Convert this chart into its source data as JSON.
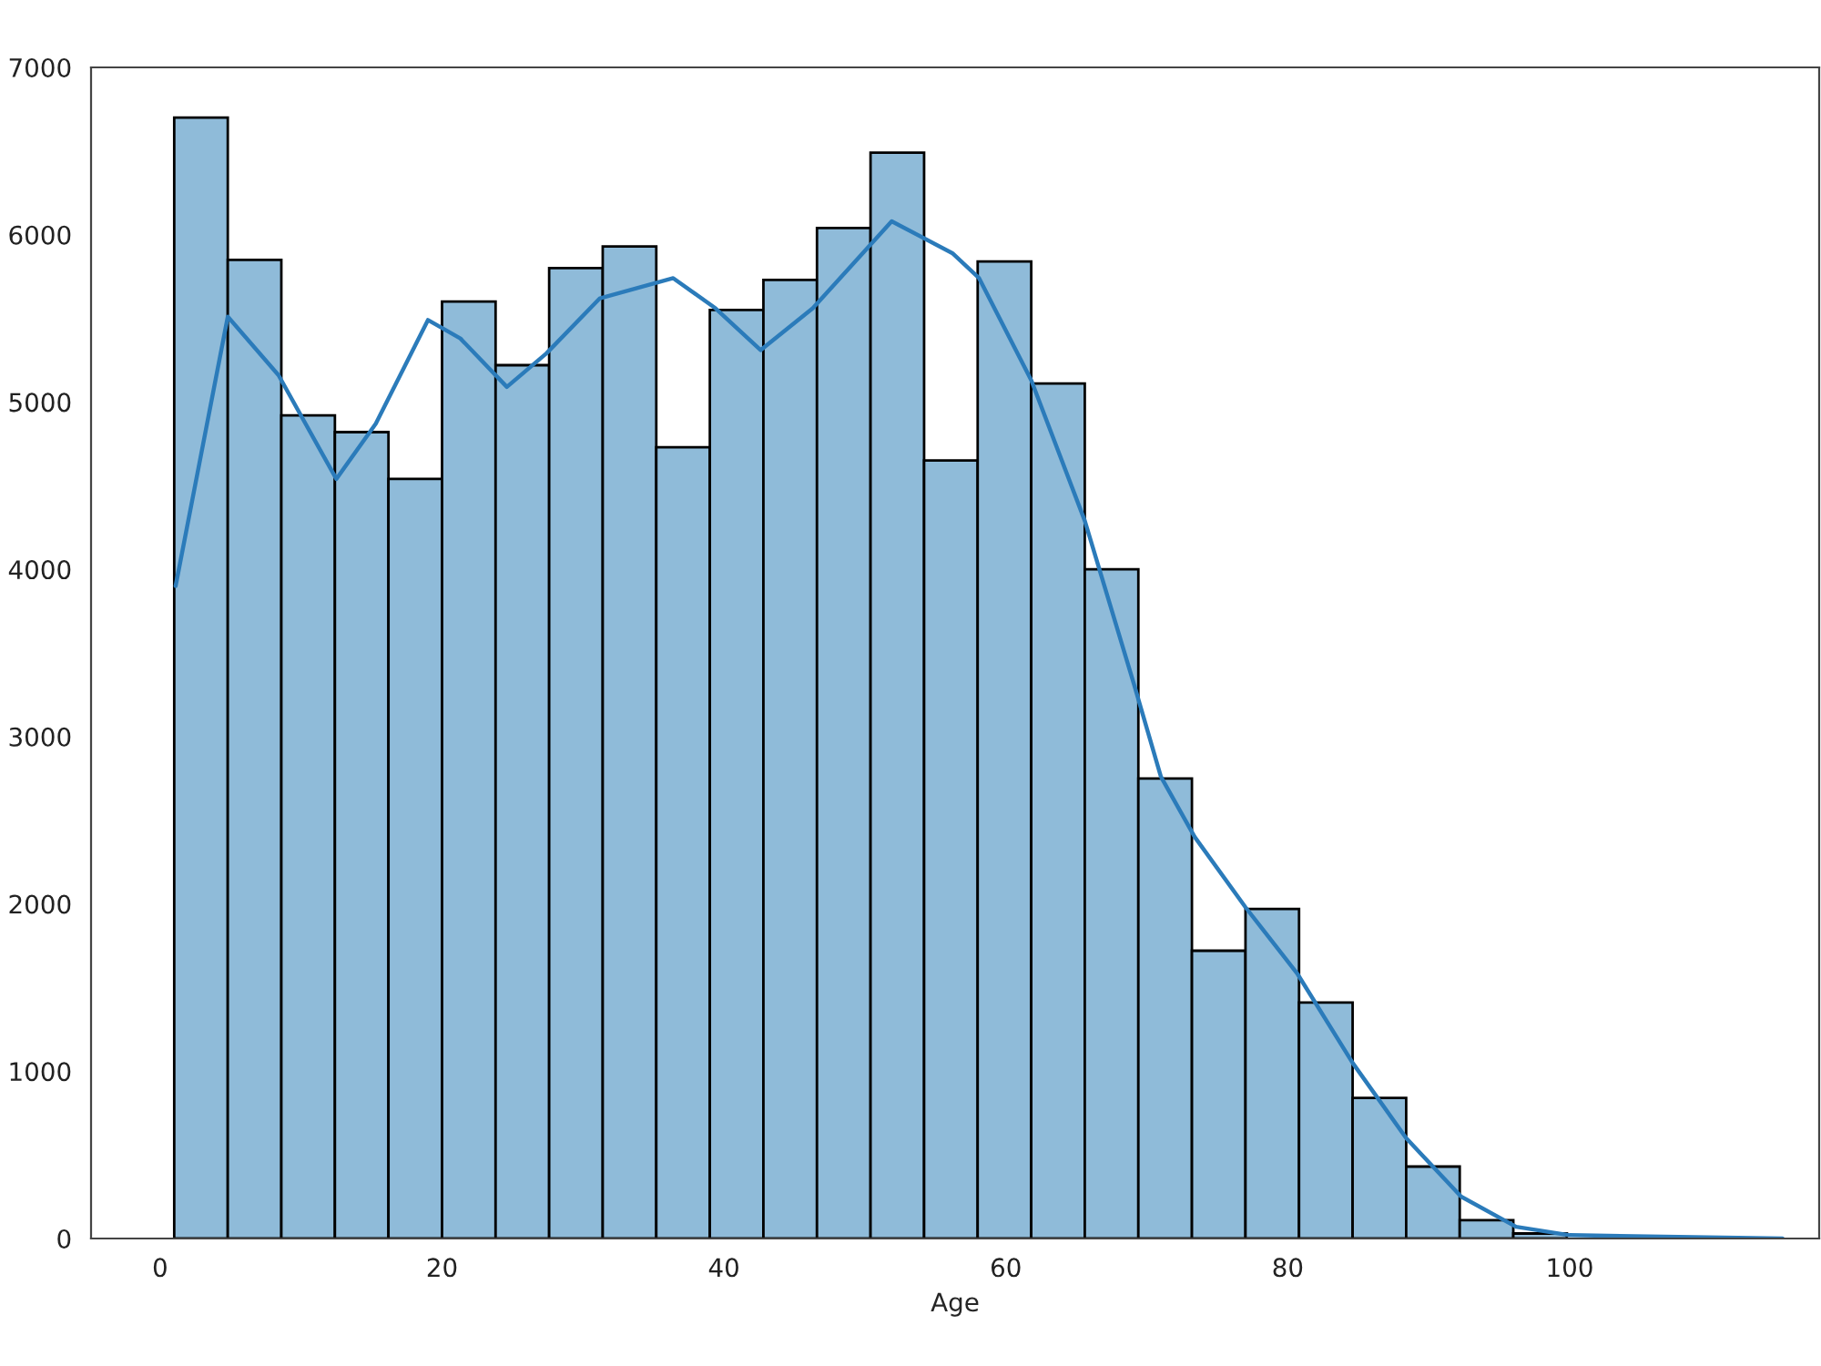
{
  "chart_data": {
    "type": "histogram",
    "xlabel": "Age",
    "series": [
      {
        "color": "#8fbbd9",
        "bins": [
          1,
          4.8,
          8.6,
          12.4,
          16.2,
          20,
          23.8,
          27.6,
          31.4,
          35.2,
          39,
          42.8,
          46.6,
          50.4,
          54.2,
          58,
          61.8,
          65.6,
          69.4,
          73.2,
          77,
          80.8,
          84.6,
          88.4,
          92.2,
          96,
          99.8,
          103.6,
          107.4,
          111.2,
          115
        ],
        "values": [
          6700,
          5850,
          4920,
          4820,
          4540,
          5600,
          5220,
          5800,
          5930,
          4730,
          5550,
          5730,
          6040,
          6490,
          4650,
          5840,
          5110,
          4000,
          2750,
          1720,
          1970,
          1410,
          840,
          430,
          110,
          30,
          0,
          0,
          0,
          0
        ]
      },
      {
        "type": "line",
        "color": "#2b7bba",
        "x": [
          1.1,
          4.8,
          8.4,
          12.5,
          15.3,
          19.0,
          21.3,
          24.6,
          27.4,
          31.2,
          36.4,
          39.4,
          42.6,
          46.3,
          51.9,
          56.2,
          58.1,
          61.8,
          65.6,
          69.1,
          71.0,
          73.4,
          77.0,
          80.7,
          84.6,
          88.4,
          92.3,
          96.2,
          100.0,
          115.1
        ],
        "values": [
          3900,
          5510,
          5160,
          4540,
          4870,
          5490,
          5380,
          5090,
          5290,
          5620,
          5740,
          5560,
          5310,
          5560,
          6080,
          5890,
          5740,
          5130,
          4290,
          3310,
          2760,
          2400,
          1980,
          1580,
          1050,
          600,
          250,
          70,
          20,
          0
        ]
      }
    ],
    "xlim": [
      -4.9,
      117.7
    ],
    "ylim": [
      0,
      7000
    ],
    "xticks": [
      0,
      20,
      40,
      60,
      80,
      100
    ],
    "yticks": [
      0,
      1000,
      2000,
      3000,
      4000,
      5000,
      6000,
      7000
    ],
    "grid": false
  }
}
